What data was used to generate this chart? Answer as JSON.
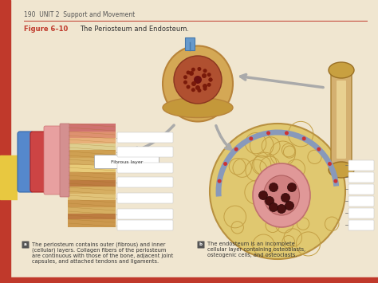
{
  "title_top": "190  UNIT 2  Support and Movement",
  "figure_label": "Figure 6–10",
  "figure_title": "The Periosteum and Endosteum.",
  "caption_a": "The periosteum contains outer (fibrous) and inner\n(cellular) layers. Collagen fibers of the periosteum\nare continuous with those of the bone, adjacent joint\ncapsules, and attached tendons and ligaments.",
  "caption_b": "The endosteum is an incomplete\ncellular layer containing osteoblasts,\nosteogenic cells, and osteoclasts.",
  "page_bg": "#f0e6d0",
  "red_line_color": "#c0392b",
  "sidebar_color": "#c0392b",
  "sidebar_yellow": "#e8c840",
  "text_color": "#333333"
}
